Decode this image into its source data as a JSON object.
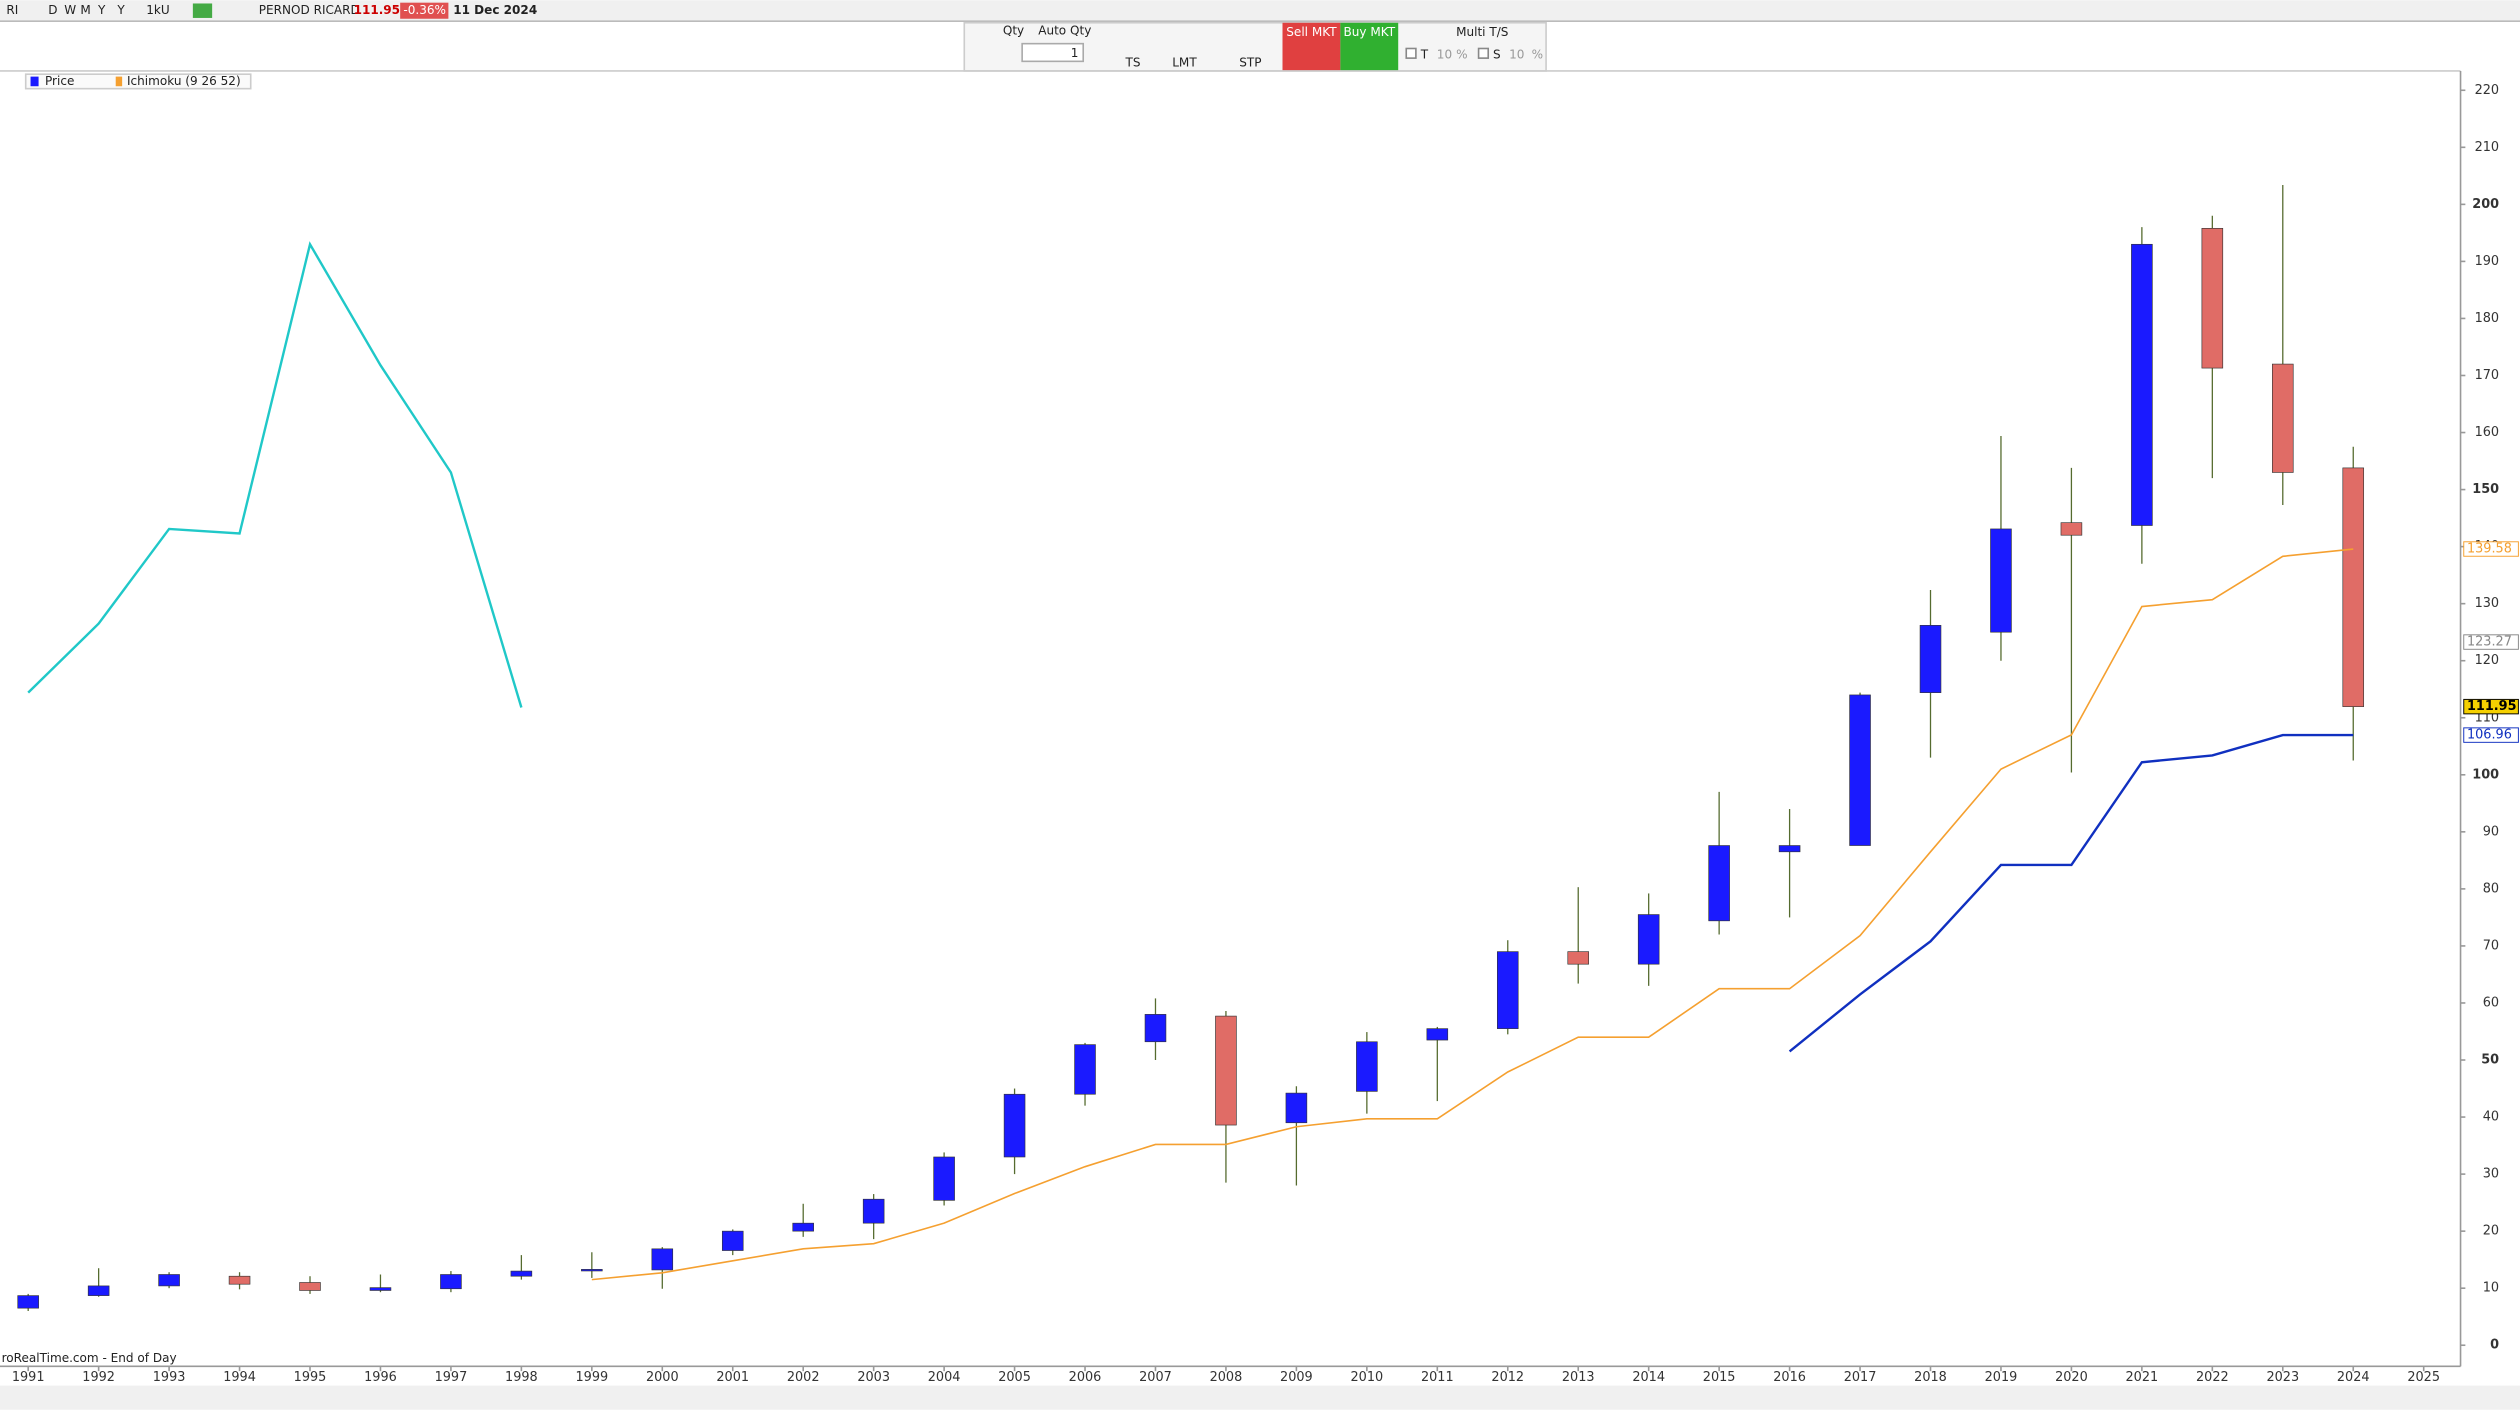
{
  "toolbar": {
    "symbol": "RI",
    "periods": [
      "D",
      "W",
      "M",
      "Y"
    ],
    "period": "Y",
    "interval": "1kU",
    "instrument": "PERNOD RICARD",
    "last": "111.95",
    "change": "-0.36%",
    "date": "11 Dec 2024"
  },
  "order_panel": {
    "qty_label": "Qty",
    "auto_qty": "Auto Qty",
    "qty": "1",
    "ts": "TS",
    "lmt": "LMT",
    "stp": "STP",
    "sell": "Sell MKT",
    "buy": "Buy MKT",
    "multi": "Multi T/S",
    "t": "T",
    "t_value": "10",
    "s": "S",
    "s_value": "10",
    "pct": "%"
  },
  "legend": [
    "Price",
    "Ichimoku (9 26 52)"
  ],
  "footer": "roRealTime.com - End of Day",
  "chart_data": {
    "type": "candlestick",
    "x": [
      1991,
      1992,
      1993,
      1994,
      1995,
      1996,
      1997,
      1998,
      1999,
      2000,
      2001,
      2002,
      2003,
      2004,
      2005,
      2006,
      2007,
      2008,
      2009,
      2010,
      2011,
      2012,
      2013,
      2014,
      2015,
      2016,
      2017,
      2018,
      2019,
      2020,
      2021,
      2022,
      2023,
      2024
    ],
    "open": [
      6.5,
      8.7,
      10.4,
      12.1,
      11,
      9.6,
      9.9,
      12.1,
      13.1,
      13.2,
      16.6,
      20,
      21.4,
      25.4,
      33,
      44,
      53.2,
      57.7,
      39,
      44.5,
      53.5,
      55.5,
      69,
      66.8,
      74.4,
      86.5,
      87.6,
      114.4,
      125,
      144.2,
      143.7,
      195.8,
      172,
      153.8
    ],
    "high": [
      9,
      13.5,
      12.8,
      12.8,
      12.1,
      12.4,
      13,
      15.8,
      16.3,
      17.2,
      20.3,
      24.8,
      26.5,
      33.8,
      45,
      53,
      60.8,
      58.6,
      45.4,
      54.9,
      55.8,
      71,
      80.3,
      79.2,
      97,
      94,
      114.4,
      132.4,
      159.4,
      153.8,
      196,
      198,
      203.4,
      157.5
    ],
    "low": [
      6,
      8.5,
      10,
      9.8,
      9,
      9.3,
      9.3,
      11.5,
      11.8,
      9.9,
      15.8,
      19,
      18.6,
      24.5,
      30,
      42,
      50,
      28.5,
      28,
      40.6,
      42.8,
      54.5,
      63.4,
      63,
      72,
      75,
      88,
      103,
      120,
      100.4,
      137,
      152,
      147.3,
      102.5
    ],
    "close": [
      8.7,
      10.4,
      12.4,
      10.7,
      9.6,
      10.1,
      12.4,
      13,
      13.3,
      16.9,
      20,
      21.4,
      25.6,
      33,
      44,
      52.7,
      58,
      38.6,
      44.2,
      53.2,
      55.5,
      69,
      66.8,
      75.5,
      87.6,
      87.6,
      114,
      126.2,
      143.1,
      142,
      193,
      171.3,
      153,
      111.95
    ],
    "up_color": "#1a1aff",
    "down_color": "#e06c66",
    "lines": [
      {
        "color": "#20c8c8",
        "x": [
          1991,
          1992,
          1993,
          1994,
          1995,
          1996,
          1997,
          1998
        ],
        "values": [
          114.4,
          126.5,
          143.1,
          142.3,
          193,
          171.8,
          153,
          111.8
        ]
      },
      {
        "color": "#f5a030",
        "x": [
          1999,
          2000,
          2001,
          2002,
          2003,
          2004,
          2005,
          2006,
          2007,
          2008,
          2009,
          2010,
          2011,
          2012,
          2013,
          2014,
          2015,
          2016,
          2017,
          2018,
          2019,
          2020,
          2021,
          2022,
          2023,
          2024
        ],
        "values": [
          11.5,
          12.7,
          14.8,
          16.9,
          17.8,
          21.4,
          26.6,
          31.3,
          35.2,
          35.2,
          38.3,
          39.7,
          39.7,
          47.9,
          54,
          54,
          62.5,
          62.5,
          71.8,
          86.5,
          101,
          107,
          129.5,
          130.7,
          138.3,
          139.58
        ]
      },
      {
        "color": "#1030c0",
        "x": [
          2016,
          2017,
          2018,
          2019,
          2020,
          2021,
          2022,
          2023,
          2024
        ],
        "values": [
          51.5,
          61.5,
          70.8,
          84.2,
          84.2,
          102.2,
          103.4,
          106.96,
          106.96
        ]
      }
    ],
    "price_tags": [
      {
        "value": 139.58,
        "color": "#f5a030",
        "fill": "#ffffff"
      },
      {
        "value": 123.27,
        "color": "#888888",
        "fill": "#ffffff"
      },
      {
        "value": 111.95,
        "color": "#000000",
        "fill": "#f5d000"
      },
      {
        "value": 106.96,
        "color": "#1030c0",
        "fill": "#ffffff"
      }
    ],
    "xlim": [
      1990.6,
      2025.5
    ],
    "xticks": [
      1991,
      1992,
      1993,
      1994,
      1995,
      1996,
      1997,
      1998,
      1999,
      2000,
      2001,
      2002,
      2003,
      2004,
      2005,
      2006,
      2007,
      2008,
      2009,
      2010,
      2011,
      2012,
      2013,
      2014,
      2015,
      2016,
      2017,
      2018,
      2019,
      2020,
      2021,
      2022,
      2023,
      2024,
      2025
    ],
    "ylim": [
      -3.7,
      223.1
    ],
    "yticks": [
      0,
      10,
      20,
      30,
      40,
      50,
      60,
      70,
      80,
      90,
      100,
      110,
      120,
      130,
      140,
      150,
      160,
      170,
      180,
      190,
      200,
      210,
      220
    ],
    "grid": false
  }
}
